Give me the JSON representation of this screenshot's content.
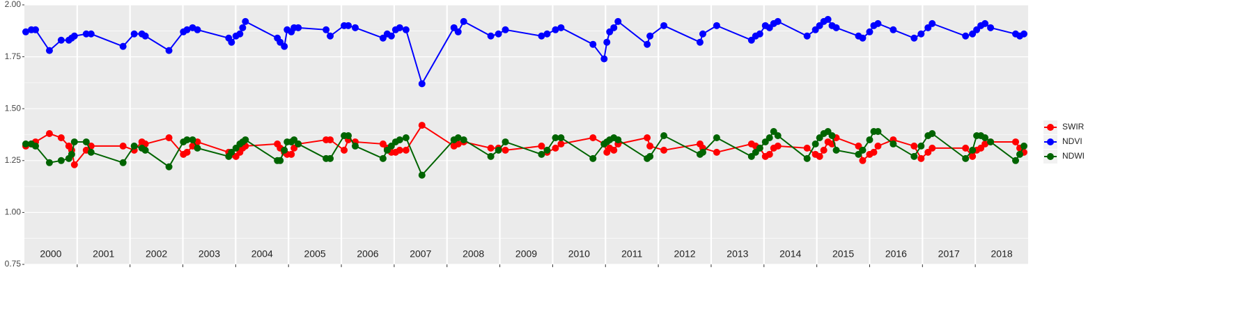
{
  "chart_data": {
    "type": "line",
    "x": [
      2000.026,
      2000.132,
      2000.211,
      2000.474,
      2000.697,
      2000.842,
      2000.895,
      2000.947,
      2001.171,
      2001.263,
      2001.868,
      2002.079,
      2002.224,
      2002.289,
      2002.737,
      2003.01,
      2003.079,
      2003.184,
      2003.276,
      2003.868,
      2003.921,
      2004.005,
      2004.079,
      2004.132,
      2004.184,
      2004.789,
      2004.842,
      2004.921,
      2004.974,
      2005.053,
      2005.105,
      2005.184,
      2005.711,
      2005.789,
      2006.053,
      2006.132,
      2006.263,
      2006.789,
      2006.868,
      2006.947,
      2007.026,
      2007.105,
      2007.224,
      2007.526,
      2008.132,
      2008.211,
      2008.316,
      2008.829,
      2008.974,
      2009.105,
      2009.789,
      2009.895,
      2010.053,
      2010.158,
      2010.763,
      2010.974,
      2011.026,
      2011.079,
      2011.158,
      2011.237,
      2011.789,
      2011.842,
      2012.105,
      2012.789,
      2012.842,
      2013.105,
      2013.763,
      2013.842,
      2013.921,
      2014.026,
      2014.105,
      2014.184,
      2014.263,
      2014.816,
      2014.974,
      2015.053,
      2015.132,
      2015.211,
      2015.289,
      2015.368,
      2015.789,
      2015.868,
      2016.0,
      2016.079,
      2016.158,
      2016.447,
      2016.842,
      2016.974,
      2017.105,
      2017.184,
      2017.816,
      2017.947,
      2018.026,
      2018.105,
      2018.184,
      2018.289,
      2018.763,
      2018.842,
      2018.921
    ],
    "series": [
      {
        "name": "SWIR",
        "color": "#ff0000",
        "values": [
          1.32,
          1.33,
          1.34,
          1.38,
          1.36,
          1.32,
          1.3,
          1.23,
          1.3,
          1.32,
          1.32,
          1.3,
          1.34,
          1.33,
          1.36,
          1.28,
          1.29,
          1.32,
          1.34,
          1.29,
          1.28,
          1.27,
          1.29,
          1.31,
          1.32,
          1.33,
          1.31,
          1.29,
          1.28,
          1.28,
          1.31,
          1.33,
          1.35,
          1.35,
          1.3,
          1.35,
          1.34,
          1.33,
          1.31,
          1.29,
          1.29,
          1.3,
          1.3,
          1.42,
          1.32,
          1.33,
          1.34,
          1.31,
          1.31,
          1.3,
          1.32,
          1.29,
          1.31,
          1.33,
          1.36,
          1.33,
          1.29,
          1.31,
          1.3,
          1.33,
          1.36,
          1.32,
          1.3,
          1.33,
          1.31,
          1.29,
          1.33,
          1.32,
          1.31,
          1.27,
          1.28,
          1.31,
          1.32,
          1.31,
          1.28,
          1.27,
          1.3,
          1.34,
          1.33,
          1.36,
          1.32,
          1.25,
          1.28,
          1.29,
          1.32,
          1.35,
          1.32,
          1.26,
          1.29,
          1.31,
          1.31,
          1.27,
          1.3,
          1.31,
          1.33,
          1.34,
          1.34,
          1.31,
          1.29
        ]
      },
      {
        "name": "NDVI",
        "color": "#0000ff",
        "values": [
          1.87,
          1.88,
          1.88,
          1.78,
          1.83,
          1.83,
          1.84,
          1.85,
          1.86,
          1.86,
          1.8,
          1.86,
          1.86,
          1.85,
          1.78,
          1.87,
          1.88,
          1.89,
          1.88,
          1.84,
          1.82,
          1.85,
          1.86,
          1.89,
          1.92,
          1.84,
          1.82,
          1.8,
          1.88,
          1.87,
          1.89,
          1.89,
          1.88,
          1.85,
          1.9,
          1.9,
          1.89,
          1.84,
          1.86,
          1.85,
          1.88,
          1.89,
          1.88,
          1.62,
          1.89,
          1.87,
          1.92,
          1.85,
          1.86,
          1.88,
          1.85,
          1.86,
          1.88,
          1.89,
          1.81,
          1.74,
          1.82,
          1.87,
          1.89,
          1.92,
          1.81,
          1.85,
          1.9,
          1.82,
          1.86,
          1.9,
          1.83,
          1.85,
          1.86,
          1.9,
          1.89,
          1.91,
          1.92,
          1.85,
          1.88,
          1.9,
          1.92,
          1.93,
          1.9,
          1.89,
          1.85,
          1.84,
          1.87,
          1.9,
          1.91,
          1.88,
          1.84,
          1.86,
          1.89,
          1.91,
          1.85,
          1.86,
          1.88,
          1.9,
          1.91,
          1.89,
          1.86,
          1.85,
          1.86
        ]
      },
      {
        "name": "NDWI",
        "color": "#006400",
        "values": [
          1.33,
          1.33,
          1.32,
          1.24,
          1.25,
          1.26,
          1.28,
          1.34,
          1.34,
          1.29,
          1.24,
          1.32,
          1.31,
          1.3,
          1.22,
          1.34,
          1.35,
          1.35,
          1.31,
          1.27,
          1.29,
          1.31,
          1.33,
          1.34,
          1.35,
          1.25,
          1.25,
          1.3,
          1.34,
          1.34,
          1.35,
          1.33,
          1.26,
          1.26,
          1.37,
          1.37,
          1.32,
          1.26,
          1.3,
          1.32,
          1.34,
          1.35,
          1.36,
          1.18,
          1.35,
          1.36,
          1.35,
          1.27,
          1.3,
          1.34,
          1.28,
          1.3,
          1.36,
          1.36,
          1.26,
          1.33,
          1.34,
          1.35,
          1.36,
          1.35,
          1.26,
          1.27,
          1.37,
          1.28,
          1.29,
          1.36,
          1.27,
          1.29,
          1.31,
          1.34,
          1.36,
          1.39,
          1.37,
          1.26,
          1.33,
          1.36,
          1.38,
          1.39,
          1.37,
          1.3,
          1.28,
          1.3,
          1.35,
          1.39,
          1.39,
          1.33,
          1.27,
          1.32,
          1.37,
          1.38,
          1.26,
          1.3,
          1.37,
          1.37,
          1.36,
          1.34,
          1.25,
          1.28,
          1.32
        ]
      }
    ],
    "xlim": [
      2000,
      2019
    ],
    "xticks": [
      2001,
      2002,
      2003,
      2004,
      2005,
      2006,
      2007,
      2008,
      2009,
      2010,
      2011,
      2012,
      2013,
      2014,
      2015,
      2016,
      2017,
      2018
    ],
    "year_labels": [
      "2000",
      "2001",
      "2002",
      "2003",
      "2004",
      "2005",
      "2006",
      "2007",
      "2008",
      "2009",
      "2010",
      "2011",
      "2012",
      "2013",
      "2014",
      "2015",
      "2016",
      "2017",
      "2018"
    ],
    "ylim": [
      0.75,
      2.0
    ],
    "yticks": [
      {
        "value": 0.75,
        "label": "0.75"
      },
      {
        "value": 1.0,
        "label": "1.00"
      },
      {
        "value": 1.25,
        "label": "1.25"
      },
      {
        "value": 1.5,
        "label": "1.50"
      },
      {
        "value": 1.75,
        "label": "1.75"
      },
      {
        "value": 2.0,
        "label": "2.00"
      }
    ],
    "grid": true
  }
}
